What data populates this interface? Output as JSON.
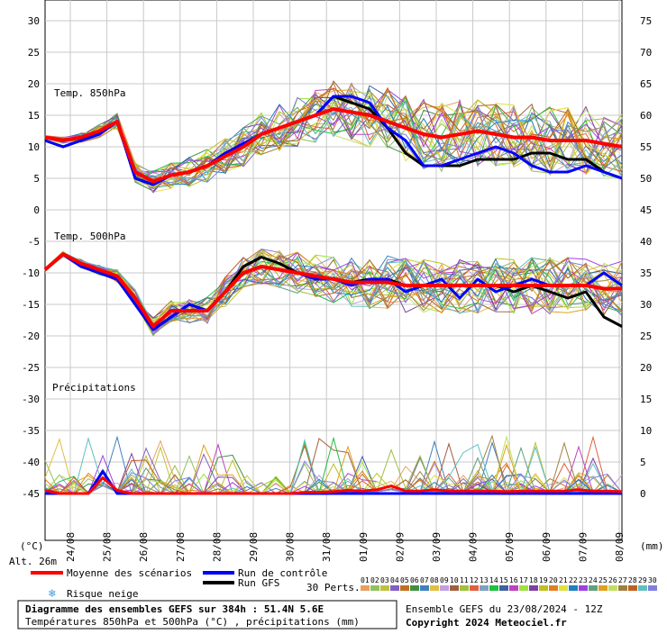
{
  "chart_data": {
    "type": "line",
    "title": "Diagramme des ensembles GEFS sur 384h : 51.4N 5.6E",
    "subtitle": "Températures 850hPa et 500hPa (°C) , précipitations (mm)",
    "x_dates": [
      "24/08",
      "25/08",
      "26/08",
      "27/08",
      "28/08",
      "29/08",
      "30/08",
      "31/08",
      "01/09",
      "02/09",
      "03/09",
      "04/09",
      "05/09",
      "06/09",
      "07/09",
      "08/09"
    ],
    "left_ticks": [
      "30",
      "25",
      "20",
      "15",
      "10",
      "5",
      "0",
      "-5",
      "-10",
      "-15",
      "-20",
      "-25",
      "-30",
      "-35",
      "-40",
      "-45"
    ],
    "right_ticks": [
      "75",
      "70",
      "65",
      "60",
      "55",
      "50",
      "45",
      "40",
      "35",
      "30",
      "25",
      "20",
      "15",
      "10",
      "5",
      "0"
    ],
    "left_unit": "(°C)",
    "right_unit": "(mm)",
    "altitude": "Alt. 26m",
    "panels": [
      {
        "label": "Temp. 850hPa"
      },
      {
        "label": "Temp. 500hPa"
      },
      {
        "label": "Précipitations"
      }
    ],
    "t850": {
      "mean": [
        11.5,
        11,
        11.5,
        12.5,
        14,
        6,
        4.5,
        5.5,
        6,
        7,
        8.5,
        10,
        12,
        13,
        14,
        15,
        16,
        15.5,
        15,
        14,
        13,
        12,
        11.5,
        12,
        12.5,
        12,
        11.5,
        11.5,
        11,
        11,
        11,
        10.5,
        10
      ],
      "control": [
        11,
        10,
        11,
        12,
        14,
        5,
        4,
        5.5,
        6,
        7,
        9,
        10.5,
        12,
        13,
        14,
        15,
        18,
        18,
        17,
        13,
        11,
        7,
        7,
        8,
        9,
        10,
        9,
        7,
        6,
        6,
        7,
        6,
        5
      ],
      "gfs": [
        11,
        10,
        11,
        12,
        14,
        5,
        4,
        5.5,
        6,
        7,
        9,
        10.5,
        12,
        13,
        14,
        15,
        18,
        17,
        16,
        13,
        9,
        7,
        7,
        7,
        8,
        8,
        8,
        9,
        9,
        8,
        8,
        6,
        5
      ]
    },
    "t500": {
      "mean": [
        -9.5,
        -7,
        -8.5,
        -9.5,
        -10.5,
        -14,
        -18.5,
        -16,
        -16,
        -16,
        -13,
        -10,
        -9,
        -9.5,
        -10,
        -10.5,
        -11,
        -11.5,
        -11.5,
        -11.5,
        -12,
        -12,
        -12,
        -12,
        -12,
        -12,
        -12,
        -12,
        -12,
        -12,
        -12,
        -12.5,
        -12.5
      ],
      "control": [
        -9.5,
        -7,
        -9,
        -10,
        -11,
        -15,
        -19,
        -17,
        -15,
        -16,
        -13,
        -10,
        -9,
        -9.5,
        -10,
        -11,
        -11,
        -12,
        -11,
        -11,
        -13,
        -12,
        -11,
        -14,
        -11,
        -13,
        -12,
        -11,
        -12,
        -12,
        -12,
        -10,
        -12
      ],
      "gfs": [
        -9.5,
        -7,
        -9,
        -10,
        -11,
        -15,
        -19,
        -17,
        -15,
        -16,
        -13,
        -9,
        -7.5,
        -8.5,
        -10,
        -11,
        -11,
        -11.5,
        -11,
        -11,
        -12,
        -12,
        -12,
        -12,
        -12,
        -12,
        -13,
        -12,
        -13,
        -14,
        -13,
        -17,
        -18.5
      ]
    },
    "precip": {
      "mean": [
        0.5,
        0,
        0,
        0,
        2.5,
        0.5,
        0,
        0,
        0,
        0,
        0,
        0,
        0,
        0,
        0,
        0,
        0,
        0,
        0.2,
        0.2,
        0.3,
        0.5,
        0.4,
        0.6,
        1.2,
        0.4,
        0.4,
        0.6,
        0.4,
        0.4,
        0.4,
        0.4,
        0.3,
        0.4,
        0.4,
        0.4,
        0.4,
        0.6,
        0.4,
        0.4,
        0.3
      ],
      "control": [
        0,
        0,
        0,
        0,
        3.5,
        0,
        0,
        0,
        0,
        0,
        0,
        0,
        0,
        0,
        0,
        0,
        0,
        0,
        0,
        0,
        0,
        0,
        0,
        0,
        0,
        0,
        0,
        0,
        0,
        0,
        0,
        0,
        0,
        0,
        0,
        0,
        0,
        0,
        0,
        0,
        0
      ]
    },
    "legend": {
      "mean": "Moyenne des scénarios",
      "control": "Run de contrôle",
      "gfs": "Run GFS",
      "snow": "Risque neige",
      "perts_label": "30 Perts.",
      "perts": [
        "01",
        "02",
        "03",
        "04",
        "05",
        "06",
        "07",
        "08",
        "09",
        "10",
        "11",
        "12",
        "13",
        "14",
        "15",
        "16",
        "17",
        "18",
        "19",
        "20",
        "21",
        "22",
        "23",
        "24",
        "25",
        "26",
        "27",
        "28",
        "29",
        "30"
      ]
    },
    "colors": {
      "mean": "#ff0000",
      "control": "#0000ff",
      "gfs": "#000000",
      "perts": [
        "#e8a060",
        "#90c060",
        "#c0c040",
        "#8060c0",
        "#c07020",
        "#409040",
        "#4080c0",
        "#e0c040",
        "#c0a0e0",
        "#a06040",
        "#a0c040",
        "#e06040",
        "#80a0c0",
        "#20c040",
        "#4060a0",
        "#c040c0",
        "#a0e040",
        "#8040a0",
        "#c0c020",
        "#e08020",
        "#e0e040",
        "#2080c0",
        "#a040e0",
        "#60a080",
        "#e0a020",
        "#c0e060",
        "#a08040",
        "#c06020",
        "#60c0c0",
        "#8080e0"
      ]
    },
    "run_info": "Ensemble GEFS du 23/08/2024 - 12Z",
    "copyright": "Copyright 2024 Meteociel.fr"
  }
}
